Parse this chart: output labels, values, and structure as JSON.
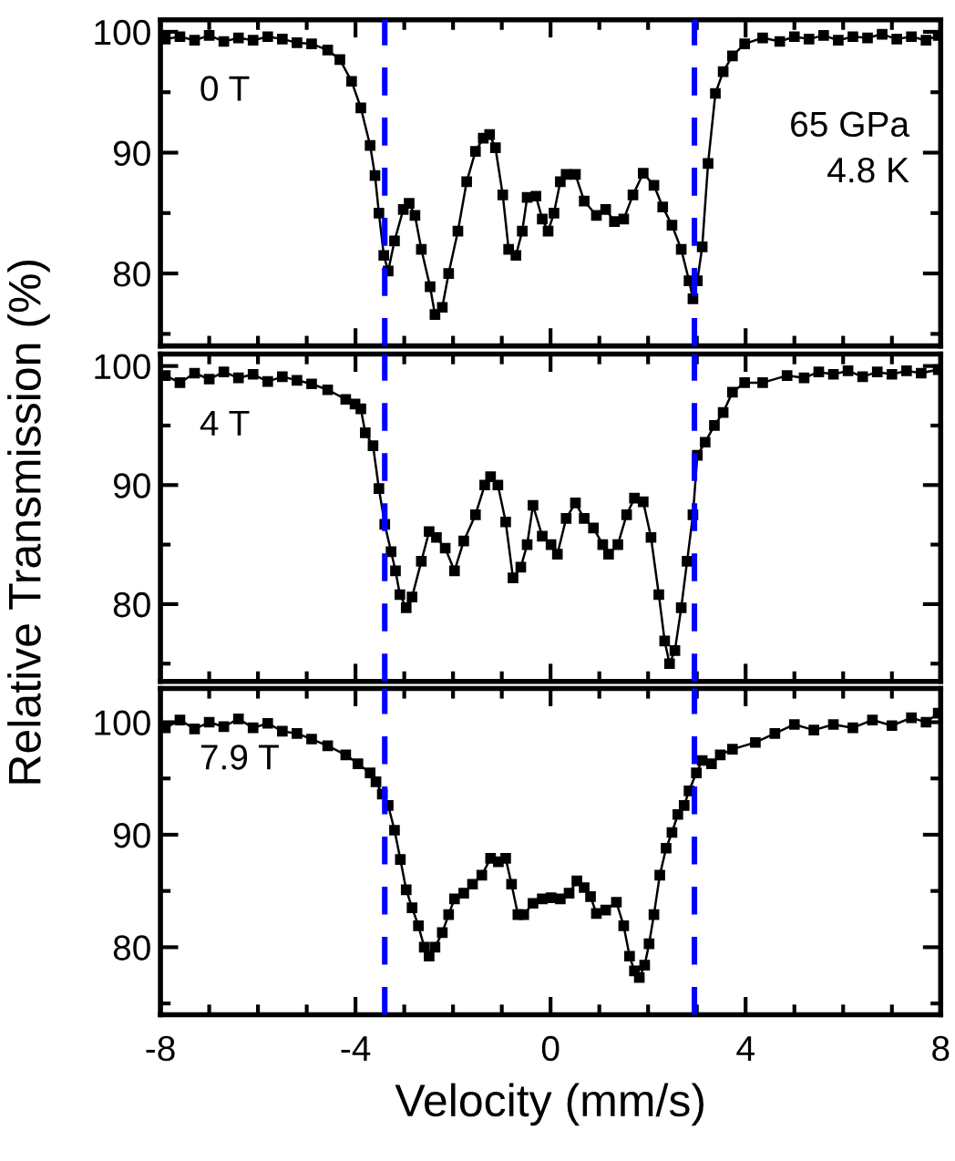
{
  "chart_data": [
    {
      "type": "line",
      "marker": "square",
      "line_style": "solid",
      "tick_labels": "y",
      "annotations": [
        "0 T",
        "65 GPa\n4.8 K"
      ],
      "xlim": [
        -8,
        8
      ],
      "xticks": [
        -8,
        {
          "value": -7,
          "label": null
        },
        {
          "value": -6,
          "label": null
        },
        {
          "value": -5,
          "label": null
        },
        -4,
        {
          "value": -3,
          "label": null
        },
        {
          "value": -2,
          "label": null
        },
        {
          "value": -1,
          "label": null
        },
        0,
        {
          "value": 1,
          "label": null
        },
        {
          "value": 2,
          "label": null
        },
        {
          "value": 3,
          "label": null
        },
        4,
        {
          "value": 5,
          "label": null
        },
        {
          "value": 6,
          "label": null
        },
        {
          "value": 7,
          "label": null
        },
        8
      ],
      "ylim": [
        74,
        101
      ],
      "yticks": [
        {
          "value": 75,
          "label": null
        },
        80,
        {
          "value": 85,
          "label": null
        },
        90,
        {
          "value": 95,
          "label": null
        },
        100
      ],
      "ref_lines": [
        {
          "axis": "x",
          "value": -3.4,
          "color": "#0000ff",
          "line_style": "dashed"
        },
        {
          "axis": "x",
          "value": 2.95,
          "color": "#0000ff",
          "line_style": "dashed"
        }
      ],
      "series": [
        {
          "color": "#000000",
          "x": [
            -7.9,
            -7.6,
            -7.3,
            -7.0,
            -6.7,
            -6.4,
            -6.1,
            -5.8,
            -5.5,
            -5.2,
            -4.9,
            -4.57,
            -4.32,
            -4.08,
            -3.89,
            -3.7,
            -3.6,
            -3.52,
            -3.42,
            -3.33,
            -3.2,
            -3.02,
            -2.9,
            -2.78,
            -2.65,
            -2.47,
            -2.37,
            -2.22,
            -2.09,
            -1.9,
            -1.72,
            -1.54,
            -1.38,
            -1.25,
            -1.13,
            -0.98,
            -0.86,
            -0.71,
            -0.58,
            -0.48,
            -0.3,
            -0.17,
            -0.05,
            0.07,
            0.2,
            0.32,
            0.51,
            0.69,
            0.94,
            1.13,
            1.31,
            1.5,
            1.69,
            1.9,
            2.12,
            2.3,
            2.49,
            2.68,
            2.84,
            2.92,
            3.01,
            3.11,
            3.23,
            3.38,
            3.54,
            3.73,
            3.98,
            4.35,
            4.7,
            5.0,
            5.3,
            5.6,
            5.9,
            6.2,
            6.5,
            6.8,
            7.1,
            7.4,
            7.7,
            7.95
          ],
          "values": [
            99.4,
            99.6,
            99.3,
            99.7,
            99.2,
            99.5,
            99.3,
            99.6,
            99.4,
            99.1,
            99.0,
            98.5,
            97.7,
            95.9,
            93.7,
            90.6,
            88.1,
            85.0,
            81.5,
            80.2,
            82.7,
            85.3,
            85.8,
            84.8,
            82.0,
            78.9,
            76.6,
            77.2,
            80.0,
            83.5,
            87.6,
            90.1,
            91.2,
            91.5,
            90.4,
            86.5,
            82.0,
            81.5,
            83.5,
            86.3,
            86.4,
            84.5,
            83.5,
            85.0,
            87.6,
            88.2,
            88.2,
            86.0,
            84.8,
            85.3,
            84.3,
            84.5,
            86.5,
            88.3,
            87.3,
            85.5,
            84.0,
            82.0,
            79.4,
            77.9,
            79.4,
            82.2,
            89.1,
            94.9,
            96.7,
            98.0,
            99.0,
            99.5,
            99.2,
            99.6,
            99.4,
            99.7,
            99.3,
            99.6,
            99.5,
            99.8,
            99.4,
            99.6,
            99.3,
            99.7
          ]
        }
      ]
    },
    {
      "type": "line",
      "marker": "square",
      "line_style": "solid",
      "tick_labels": "y",
      "ylabel": "Relative Transmission (%)",
      "annotations": [
        "4 T"
      ],
      "xlim": [
        -8,
        8
      ],
      "xticks": [
        -8,
        {
          "value": -7,
          "label": null
        },
        {
          "value": -6,
          "label": null
        },
        {
          "value": -5,
          "label": null
        },
        -4,
        {
          "value": -3,
          "label": null
        },
        {
          "value": -2,
          "label": null
        },
        {
          "value": -1,
          "label": null
        },
        0,
        {
          "value": 1,
          "label": null
        },
        {
          "value": 2,
          "label": null
        },
        {
          "value": 3,
          "label": null
        },
        4,
        {
          "value": 5,
          "label": null
        },
        {
          "value": 6,
          "label": null
        },
        {
          "value": 7,
          "label": null
        },
        8
      ],
      "ylim": [
        73.5,
        101
      ],
      "yticks": [
        {
          "value": 75,
          "label": null
        },
        80,
        {
          "value": 85,
          "label": null
        },
        90,
        {
          "value": 95,
          "label": null
        },
        100
      ],
      "ref_lines": [
        {
          "axis": "x",
          "value": -3.4,
          "color": "#0000ff",
          "line_style": "dashed"
        },
        {
          "axis": "x",
          "value": 2.95,
          "color": "#0000ff",
          "line_style": "dashed"
        }
      ],
      "series": [
        {
          "color": "#000000",
          "x": [
            -7.9,
            -7.6,
            -7.3,
            -7.0,
            -6.7,
            -6.4,
            -6.1,
            -5.8,
            -5.5,
            -5.2,
            -4.9,
            -4.57,
            -4.2,
            -4.01,
            -3.89,
            -3.8,
            -3.64,
            -3.52,
            -3.4,
            -3.27,
            -3.18,
            -3.09,
            -2.96,
            -2.84,
            -2.65,
            -2.49,
            -2.34,
            -2.16,
            -1.97,
            -1.78,
            -1.54,
            -1.35,
            -1.23,
            -1.08,
            -0.92,
            -0.77,
            -0.61,
            -0.48,
            -0.36,
            -0.17,
            0.01,
            0.14,
            0.32,
            0.51,
            0.69,
            0.88,
            1.07,
            1.19,
            1.38,
            1.56,
            1.72,
            1.9,
            2.06,
            2.22,
            2.34,
            2.44,
            2.55,
            2.68,
            2.8,
            2.92,
            3.01,
            3.17,
            3.36,
            3.54,
            3.73,
            3.98,
            4.35,
            4.85,
            5.2,
            5.5,
            5.8,
            6.1,
            6.4,
            6.7,
            7.0,
            7.3,
            7.6,
            7.95
          ],
          "values": [
            99.2,
            98.6,
            99.4,
            98.9,
            99.5,
            99.0,
            99.3,
            98.7,
            99.1,
            98.8,
            98.5,
            98.0,
            97.2,
            96.8,
            96.4,
            94.4,
            93.3,
            89.7,
            86.7,
            84.4,
            82.8,
            80.8,
            79.7,
            80.6,
            83.6,
            86.1,
            85.6,
            84.7,
            82.8,
            85.3,
            87.5,
            90.0,
            90.7,
            90.0,
            86.9,
            82.2,
            83.1,
            85.0,
            88.3,
            85.7,
            85.0,
            84.2,
            87.2,
            88.5,
            87.2,
            86.4,
            85.0,
            84.2,
            85.0,
            87.5,
            88.9,
            88.6,
            85.6,
            80.8,
            76.9,
            75.0,
            76.1,
            79.7,
            83.6,
            87.5,
            92.5,
            93.6,
            95.0,
            96.1,
            97.8,
            98.6,
            98.6,
            99.2,
            99.0,
            99.5,
            99.3,
            99.6,
            99.1,
            99.5,
            99.3,
            99.6,
            99.4,
            99.7
          ]
        }
      ]
    },
    {
      "type": "line",
      "marker": "square",
      "line_style": "solid",
      "xlabel": "Velocity (mm/s)",
      "annotations": [
        "7.9 T"
      ],
      "xlim": [
        -8,
        8
      ],
      "xticks": [
        -8,
        {
          "value": -7,
          "label": null
        },
        {
          "value": -6,
          "label": null
        },
        {
          "value": -5,
          "label": null
        },
        -4,
        {
          "value": -3,
          "label": null
        },
        {
          "value": -2,
          "label": null
        },
        {
          "value": -1,
          "label": null
        },
        0,
        {
          "value": 1,
          "label": null
        },
        {
          "value": 2,
          "label": null
        },
        {
          "value": 3,
          "label": null
        },
        4,
        {
          "value": 5,
          "label": null
        },
        {
          "value": 6,
          "label": null
        },
        {
          "value": 7,
          "label": null
        },
        8
      ],
      "ylim": [
        74,
        103
      ],
      "yticks": [
        {
          "value": 75,
          "label": null
        },
        80,
        {
          "value": 85,
          "label": null
        },
        90,
        {
          "value": 95,
          "label": null
        },
        100
      ],
      "ref_lines": [
        {
          "axis": "x",
          "value": -3.4,
          "color": "#0000ff",
          "line_style": "dashed"
        },
        {
          "axis": "x",
          "value": 2.95,
          "color": "#0000ff",
          "line_style": "dashed"
        }
      ],
      "series": [
        {
          "color": "#000000",
          "x": [
            -7.9,
            -7.6,
            -7.3,
            -7.0,
            -6.7,
            -6.4,
            -6.1,
            -5.8,
            -5.5,
            -5.2,
            -4.9,
            -4.57,
            -4.2,
            -3.95,
            -3.7,
            -3.58,
            -3.45,
            -3.33,
            -3.2,
            -3.08,
            -2.96,
            -2.84,
            -2.71,
            -2.59,
            -2.49,
            -2.37,
            -2.22,
            -2.09,
            -1.97,
            -1.78,
            -1.6,
            -1.41,
            -1.23,
            -1.07,
            -0.92,
            -0.8,
            -0.67,
            -0.55,
            -0.36,
            -0.17,
            0.01,
            0.2,
            0.38,
            0.54,
            0.69,
            0.82,
            0.94,
            1.13,
            1.35,
            1.5,
            1.62,
            1.72,
            1.82,
            1.93,
            2.02,
            2.12,
            2.24,
            2.37,
            2.49,
            2.61,
            2.74,
            2.84,
            2.99,
            3.11,
            3.3,
            3.48,
            3.73,
            4.2,
            4.6,
            5.0,
            5.4,
            5.8,
            6.2,
            6.6,
            7.0,
            7.4,
            7.7,
            7.95
          ],
          "values": [
            99.5,
            100.2,
            99.4,
            100.0,
            99.6,
            100.3,
            99.5,
            99.9,
            99.2,
            99.0,
            98.5,
            97.9,
            97.1,
            96.3,
            95.5,
            94.7,
            93.6,
            92.6,
            90.4,
            87.8,
            85.1,
            83.5,
            81.9,
            80.0,
            79.2,
            80.0,
            81.3,
            82.9,
            84.3,
            84.8,
            85.6,
            86.4,
            87.9,
            87.6,
            87.9,
            85.6,
            82.9,
            82.9,
            83.9,
            84.3,
            84.4,
            84.3,
            84.8,
            85.9,
            85.3,
            84.5,
            83.0,
            83.3,
            84.0,
            81.9,
            79.2,
            77.9,
            77.3,
            78.4,
            80.3,
            82.9,
            86.4,
            88.8,
            90.2,
            91.8,
            92.6,
            93.9,
            95.5,
            96.6,
            96.3,
            97.1,
            97.6,
            98.2,
            99.0,
            99.8,
            99.3,
            99.8,
            99.5,
            100.2,
            99.7,
            100.4,
            100.0,
            100.8
          ]
        }
      ]
    }
  ]
}
